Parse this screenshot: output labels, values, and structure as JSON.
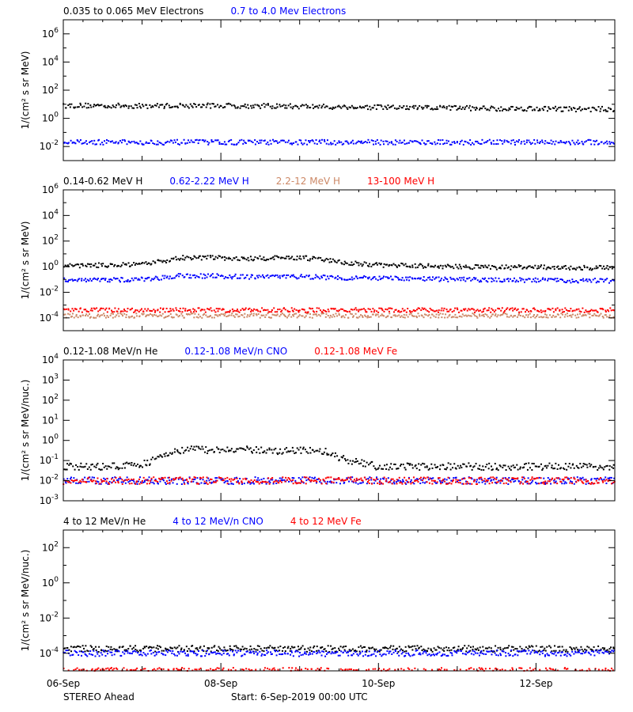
{
  "footer": {
    "spacecraft": "STEREO Ahead",
    "start": "Start:  6-Sep-2019 00:00 UTC"
  },
  "x_axis": {
    "tick_labels": [
      "06-Sep",
      "08-Sep",
      "10-Sep",
      "12-Sep"
    ],
    "tick_days": [
      0,
      2,
      4,
      6
    ],
    "range_days": [
      0,
      7
    ]
  },
  "colors": {
    "black": "#000000",
    "blue": "#0000ff",
    "tan": "#cc8866",
    "red": "#ff0000",
    "magenta": "#ff00ff"
  },
  "chart_data": [
    {
      "type": "scatter",
      "ylabel": "1/(cm² s sr MeV)",
      "yscale": "log",
      "ylim": [
        0.001,
        10000000
      ],
      "ytick_exponents": [
        -2,
        0,
        2,
        4,
        6
      ],
      "legend": [
        {
          "text": "0.035 to 0.065 MeV Electrons",
          "color": "#000000"
        },
        {
          "text": "0.7 to 4.0 Mev Electrons",
          "color": "#0000ff"
        }
      ],
      "series": [
        {
          "name": "0.035 to 0.065 MeV Electrons",
          "color": "#000000",
          "x": [
            0,
            0.5,
            1,
            1.5,
            2,
            2.5,
            3,
            3.5,
            4,
            4.5,
            5,
            5.5,
            6,
            6.5,
            7
          ],
          "y": [
            8,
            8,
            7.5,
            8,
            8,
            7.5,
            7,
            6.5,
            6,
            5.5,
            5.5,
            5,
            5,
            4.5,
            4.5
          ]
        },
        {
          "name": "0.7 to 4.0 Mev Electrons",
          "color": "#0000ff",
          "x": [
            0,
            1,
            2,
            3,
            4,
            5,
            6,
            7
          ],
          "y": [
            0.02,
            0.02,
            0.02,
            0.02,
            0.02,
            0.02,
            0.02,
            0.02
          ]
        }
      ]
    },
    {
      "type": "scatter",
      "ylabel": "1/(cm² s sr MeV)",
      "yscale": "log",
      "ylim": [
        1e-05,
        1000000
      ],
      "ytick_exponents": [
        -4,
        -2,
        0,
        2,
        4,
        6
      ],
      "legend": [
        {
          "text": "0.14-0.62 MeV H",
          "color": "#000000"
        },
        {
          "text": "0.62-2.22 MeV H",
          "color": "#0000ff"
        },
        {
          "text": "2.2-12 MeV H",
          "color": "#cc8866"
        },
        {
          "text": "13-100 MeV H",
          "color": "#ff0000"
        }
      ],
      "series": [
        {
          "name": "0.14-0.62 MeV H",
          "color": "#000000",
          "x": [
            0,
            0.5,
            1,
            1.3,
            1.5,
            2,
            2.3,
            2.5,
            3,
            3.3,
            3.6,
            4,
            4.5,
            5,
            5.5,
            6,
            6.5,
            7
          ],
          "y": [
            1.2,
            1.3,
            1.4,
            3,
            5,
            5,
            4,
            4.5,
            5,
            3.5,
            2,
            1.3,
            1.2,
            1.0,
            0.9,
            0.9,
            0.8,
            0.8
          ]
        },
        {
          "name": "0.62-2.22 MeV H",
          "color": "#0000ff",
          "x": [
            0,
            0.5,
            1,
            1.3,
            1.5,
            2,
            2.5,
            3,
            3.5,
            4,
            4.5,
            5,
            5.5,
            6,
            6.5,
            7
          ],
          "y": [
            0.1,
            0.09,
            0.1,
            0.15,
            0.2,
            0.18,
            0.15,
            0.17,
            0.14,
            0.12,
            0.11,
            0.1,
            0.09,
            0.09,
            0.08,
            0.08
          ]
        },
        {
          "name": "2.2-12 MeV H",
          "color": "#cc8866",
          "x": [
            0,
            1,
            2,
            3,
            4,
            5,
            6,
            7
          ],
          "y": [
            0.00015,
            0.00015,
            0.00015,
            0.00015,
            0.00015,
            0.00015,
            0.00015,
            0.00015
          ]
        },
        {
          "name": "13-100 MeV H",
          "color": "#ff0000",
          "x": [
            0,
            1,
            2,
            3,
            4,
            5,
            6,
            7
          ],
          "y": [
            0.0004,
            0.0004,
            0.0004,
            0.0004,
            0.0004,
            0.0004,
            0.0004,
            0.0004
          ]
        }
      ]
    },
    {
      "type": "scatter",
      "ylabel": "1/(cm² s sr MeV/nuc.)",
      "yscale": "log",
      "ylim": [
        0.001,
        10000
      ],
      "ytick_exponents": [
        -3,
        -2,
        -1,
        0,
        1,
        2,
        3,
        4
      ],
      "legend": [
        {
          "text": "0.12-1.08 MeV/n He",
          "color": "#000000"
        },
        {
          "text": "0.12-1.08 MeV/n CNO",
          "color": "#0000ff"
        },
        {
          "text": "0.12-1.08 MeV Fe",
          "color": "#ff0000"
        }
      ],
      "series": [
        {
          "name": "0.12-1.08 MeV/n He",
          "color": "#000000",
          "x": [
            0,
            0.5,
            1,
            1.3,
            1.6,
            2,
            2.3,
            2.6,
            3,
            3.3,
            3.6,
            4,
            4.5,
            5,
            5.5,
            6,
            6.5,
            7
          ],
          "y": [
            0.05,
            0.05,
            0.06,
            0.2,
            0.4,
            0.3,
            0.35,
            0.3,
            0.3,
            0.3,
            0.1,
            0.05,
            0.05,
            0.05,
            0.05,
            0.05,
            0.05,
            0.05
          ]
        },
        {
          "name": "0.12-1.08 MeV/n CNO",
          "color": "#0000ff",
          "x": [
            0,
            1,
            2,
            3,
            4,
            5,
            6,
            7
          ],
          "y": [
            0.01,
            0.01,
            0.01,
            0.01,
            0.01,
            0.01,
            0.01,
            0.01
          ]
        },
        {
          "name": "0.12-1.08 MeV Fe",
          "color": "#ff0000",
          "x": [
            0,
            1,
            2,
            3,
            4,
            5,
            6,
            7
          ],
          "y": [
            0.01,
            0.01,
            0.01,
            0.01,
            0.01,
            0.01,
            0.01,
            0.01
          ]
        }
      ]
    },
    {
      "type": "scatter",
      "ylabel": "1/(cm² s sr MeV/nuc.)",
      "yscale": "log",
      "ylim": [
        1e-05,
        1000
      ],
      "ytick_exponents": [
        -4,
        -2,
        0,
        2
      ],
      "legend": [
        {
          "text": "4 to 12 MeV/n He",
          "color": "#000000"
        },
        {
          "text": "4 to 12 MeV/n CNO",
          "color": "#0000ff"
        },
        {
          "text": "4 to 12 MeV Fe",
          "color": "#ff0000"
        }
      ],
      "series": [
        {
          "name": "4 to 12 MeV/n He",
          "color": "#000000",
          "x": [
            0,
            1,
            2,
            3,
            4,
            5,
            6,
            7
          ],
          "y": [
            0.00018,
            0.00018,
            0.00018,
            0.00018,
            0.00018,
            0.00018,
            0.00018,
            0.00018
          ]
        },
        {
          "name": "4 to 12 MeV/n CNO",
          "color": "#0000ff",
          "x": [
            0,
            1,
            2,
            3,
            4,
            5,
            6,
            7
          ],
          "y": [
            0.0001,
            0.0001,
            0.0001,
            0.0001,
            0.0001,
            0.0001,
            0.0001,
            0.0001
          ]
        },
        {
          "name": "4 to 12 MeV Fe",
          "color": "#ff0000",
          "x": [
            0,
            7
          ],
          "y": [
            1e-05,
            1e-05
          ]
        }
      ]
    }
  ]
}
